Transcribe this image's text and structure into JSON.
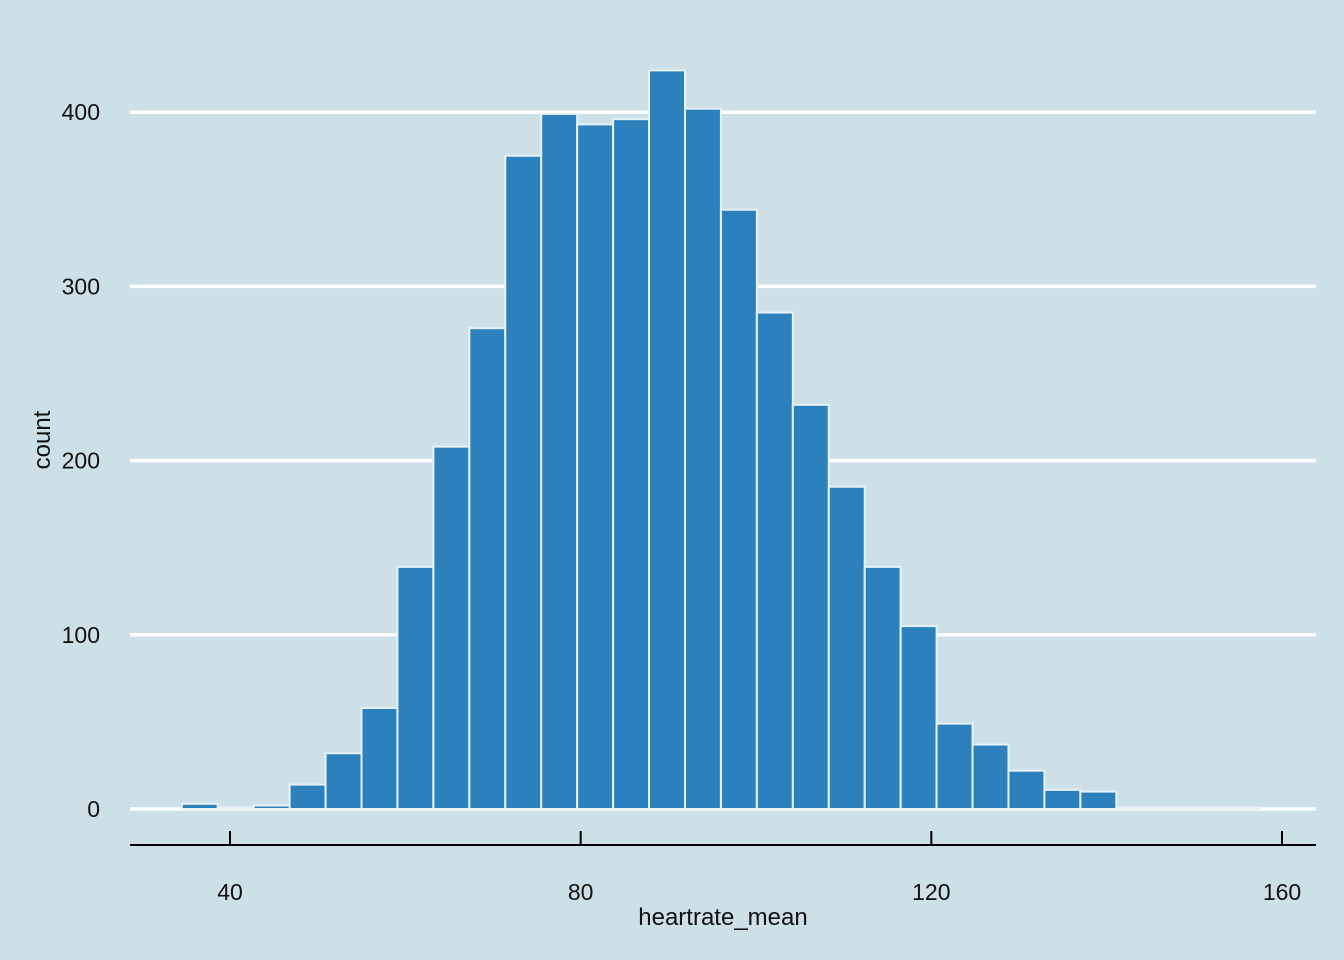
{
  "chart_data": {
    "type": "bar",
    "subtype": "histogram",
    "title": "",
    "xlabel": "heartrate_mean",
    "ylabel": "count",
    "xlim": [
      29.5,
      163.5
    ],
    "ylim": [
      -20,
      425
    ],
    "xticks": [
      40,
      80,
      120,
      160
    ],
    "yticks": [
      0,
      100,
      200,
      300,
      400
    ],
    "grid": "horizontal",
    "bin_width": 4.1,
    "bin_start": 34.5,
    "values": [
      3,
      1,
      2,
      14,
      32,
      58,
      139,
      208,
      276,
      375,
      399,
      393,
      396,
      424,
      402,
      344,
      285,
      232,
      185,
      139,
      105,
      49,
      37,
      22,
      11,
      10,
      1,
      1,
      1,
      1
    ],
    "colors": {
      "background": "#cde0e8",
      "bar_fill": "#2c80bb",
      "bar_edge": "#e8f1f6",
      "grid": "#ffffff",
      "axis": "#000000"
    }
  }
}
